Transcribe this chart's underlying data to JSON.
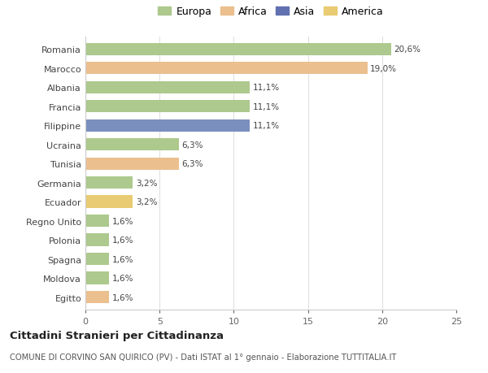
{
  "categories": [
    "Romania",
    "Marocco",
    "Albania",
    "Francia",
    "Filippine",
    "Ucraina",
    "Tunisia",
    "Germania",
    "Ecuador",
    "Regno Unito",
    "Polonia",
    "Spagna",
    "Moldova",
    "Egitto"
  ],
  "values": [
    20.6,
    19.0,
    11.1,
    11.1,
    11.1,
    6.3,
    6.3,
    3.2,
    3.2,
    1.6,
    1.6,
    1.6,
    1.6,
    1.6
  ],
  "labels": [
    "20,6%",
    "19,0%",
    "11,1%",
    "11,1%",
    "11,1%",
    "6,3%",
    "6,3%",
    "3,2%",
    "3,2%",
    "1,6%",
    "1,6%",
    "1,6%",
    "1,6%",
    "1,6%"
  ],
  "colors": [
    "#adc98d",
    "#ebbf8e",
    "#adc98d",
    "#adc98d",
    "#7b8fbe",
    "#adc98d",
    "#ebbf8e",
    "#adc98d",
    "#e8cb72",
    "#adc98d",
    "#adc98d",
    "#adc98d",
    "#adc98d",
    "#ebbf8e"
  ],
  "legend": {
    "Europa": "#adc98d",
    "Africa": "#ebbf8e",
    "Asia": "#6070b0",
    "America": "#e8cb72"
  },
  "xlim": [
    0,
    25
  ],
  "xticks": [
    0,
    5,
    10,
    15,
    20,
    25
  ],
  "title1": "Cittadini Stranieri per Cittadinanza",
  "title2": "COMUNE DI CORVINO SAN QUIRICO (PV) - Dati ISTAT al 1° gennaio - Elaborazione TUTTITALIA.IT",
  "bg_color": "#ffffff",
  "grid_color": "#e0e0e0",
  "bar_height": 0.65
}
